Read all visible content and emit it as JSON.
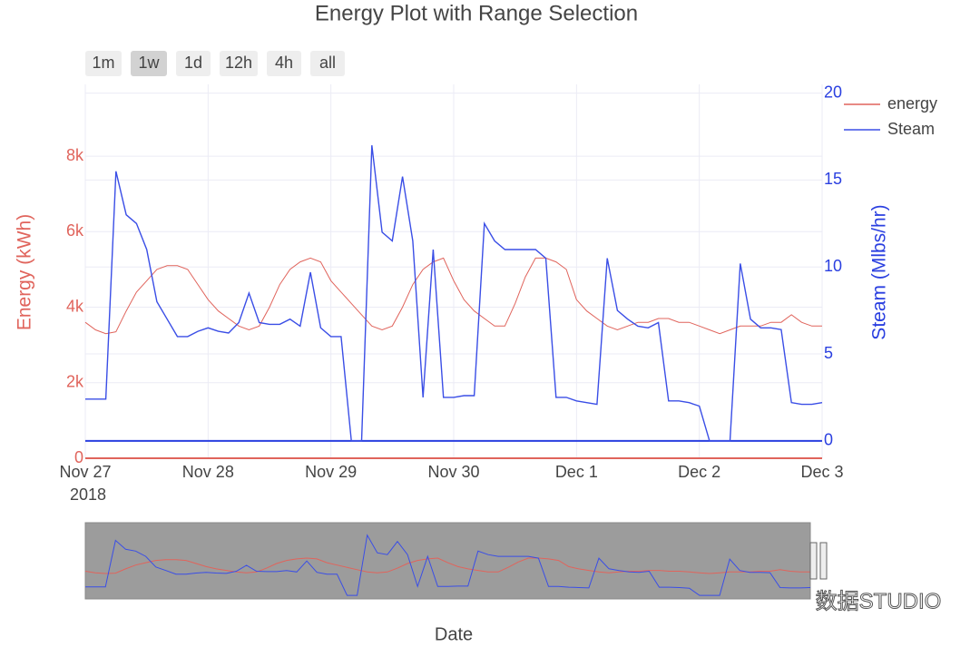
{
  "chart_data": {
    "type": "line",
    "title": "Energy Plot with Range Selection",
    "range_buttons": [
      "1m",
      "1w",
      "1d",
      "12h",
      "4h",
      "all"
    ],
    "active_button": 1,
    "xlabel": "Date",
    "ylabel": "Energy (kWh)",
    "y2label": "Steam (Mlbs/hr)",
    "watermark": "数据STUDIO",
    "x": [
      "2018-11-27 00:00",
      "2018-11-27 02:00",
      "2018-11-27 04:00",
      "2018-11-27 06:00",
      "2018-11-27 08:00",
      "2018-11-27 10:00",
      "2018-11-27 12:00",
      "2018-11-27 14:00",
      "2018-11-27 16:00",
      "2018-11-27 18:00",
      "2018-11-27 20:00",
      "2018-11-27 22:00",
      "2018-11-28 00:00",
      "2018-11-28 02:00",
      "2018-11-28 04:00",
      "2018-11-28 06:00",
      "2018-11-28 08:00",
      "2018-11-28 10:00",
      "2018-11-28 12:00",
      "2018-11-28 14:00",
      "2018-11-28 16:00",
      "2018-11-28 18:00",
      "2018-11-28 20:00",
      "2018-11-28 22:00",
      "2018-11-29 00:00",
      "2018-11-29 02:00",
      "2018-11-29 04:00",
      "2018-11-29 06:00",
      "2018-11-29 08:00",
      "2018-11-29 10:00",
      "2018-11-29 12:00",
      "2018-11-29 14:00",
      "2018-11-29 16:00",
      "2018-11-29 18:00",
      "2018-11-29 20:00",
      "2018-11-29 22:00",
      "2018-11-30 00:00",
      "2018-11-30 02:00",
      "2018-11-30 04:00",
      "2018-11-30 06:00",
      "2018-11-30 08:00",
      "2018-11-30 10:00",
      "2018-11-30 12:00",
      "2018-11-30 14:00",
      "2018-11-30 16:00",
      "2018-11-30 18:00",
      "2018-11-30 20:00",
      "2018-11-30 22:00",
      "2018-12-01 00:00",
      "2018-12-01 02:00",
      "2018-12-01 04:00",
      "2018-12-01 06:00",
      "2018-12-01 08:00",
      "2018-12-01 10:00",
      "2018-12-01 12:00",
      "2018-12-01 14:00",
      "2018-12-01 16:00",
      "2018-12-01 18:00",
      "2018-12-01 20:00",
      "2018-12-01 22:00",
      "2018-12-02 00:00",
      "2018-12-02 02:00",
      "2018-12-02 04:00",
      "2018-12-02 06:00",
      "2018-12-02 08:00",
      "2018-12-02 10:00",
      "2018-12-02 12:00",
      "2018-12-02 14:00",
      "2018-12-02 16:00",
      "2018-12-02 18:00",
      "2018-12-02 20:00",
      "2018-12-02 22:00",
      "2018-12-03 00:00"
    ],
    "series": [
      {
        "name": "energy",
        "color": "#e0645c",
        "values": [
          3600,
          3400,
          3300,
          3350,
          3900,
          4400,
          4700,
          5000,
          5100,
          5100,
          5000,
          4600,
          4200,
          3900,
          3700,
          3500,
          3400,
          3500,
          4000,
          4600,
          5000,
          5200,
          5300,
          5200,
          4700,
          4400,
          4100,
          3800,
          3500,
          3400,
          3500,
          4000,
          4600,
          5000,
          5200,
          5300,
          4700,
          4200,
          3900,
          3700,
          3500,
          3500,
          4100,
          4800,
          5300,
          5300,
          5200,
          5000,
          4200,
          3900,
          3700,
          3500,
          3400,
          3500,
          3600,
          3600,
          3700,
          3700,
          3600,
          3600,
          3500,
          3400,
          3300,
          3400,
          3500,
          3500,
          3500,
          3600,
          3600,
          3800,
          3600,
          3500,
          3500
        ]
      },
      {
        "name": "Steam",
        "color": "#3a4ee6",
        "axis": "y2",
        "values": [
          2.4,
          2.4,
          2.4,
          15.5,
          13,
          12.5,
          11,
          8,
          7,
          6,
          6,
          6.3,
          6.5,
          6.3,
          6.2,
          6.8,
          8.5,
          6.8,
          6.7,
          6.7,
          7,
          6.6,
          9.7,
          6.5,
          6,
          6,
          0,
          0,
          17,
          12,
          11.5,
          15.2,
          11.5,
          2.5,
          11,
          2.5,
          2.5,
          2.6,
          2.6,
          12.5,
          11.5,
          11,
          11,
          11,
          11,
          10.5,
          2.5,
          2.5,
          2.3,
          2.2,
          2.1,
          10.5,
          7.5,
          7,
          6.6,
          6.5,
          6.8,
          2.3,
          2.3,
          2.2,
          2,
          0,
          0,
          0,
          10.2,
          7,
          6.5,
          6.5,
          6.4,
          2.2,
          2.1,
          2.1,
          2.2
        ]
      }
    ],
    "xlim": [
      "2018-11-27 00:00",
      "2018-12-03 00:00"
    ],
    "xticks": [
      {
        "value": "2018-11-27 00:00",
        "label": "Nov 27"
      },
      {
        "value": "2018-11-28 00:00",
        "label": "Nov 28"
      },
      {
        "value": "2018-11-29 00:00",
        "label": "Nov 29"
      },
      {
        "value": "2018-11-30 00:00",
        "label": "Nov 30"
      },
      {
        "value": "2018-12-01 00:00",
        "label": "Dec 1"
      },
      {
        "value": "2018-12-02 00:00",
        "label": "Dec 2"
      },
      {
        "value": "2018-12-03 00:00",
        "label": "Dec 3"
      }
    ],
    "x_year_label": "2018",
    "ylim": [
      0,
      9900
    ],
    "yticks": [
      0,
      {
        "value": 2000,
        "label": "2k"
      },
      {
        "value": 4000,
        "label": "4k"
      },
      {
        "value": 6000,
        "label": "6k"
      },
      {
        "value": 8000,
        "label": "8k"
      }
    ],
    "y2lim": [
      -1,
      20.5
    ],
    "y2ticks": [
      0,
      5,
      10,
      15,
      20
    ],
    "grid": true,
    "legend": "top-right",
    "range_slider": true
  }
}
